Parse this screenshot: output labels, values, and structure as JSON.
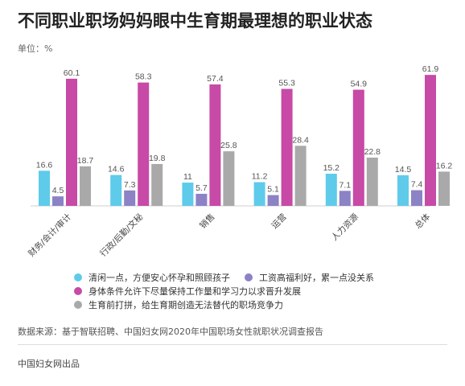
{
  "title": "不同职业职场妈妈眼中生育期最理想的职业状态",
  "unit": "单位：%",
  "source": "数据来源：基于智联招聘、中国妇女网2020年中国职场女性就职状况调查报告",
  "footer": "中国妇女网出品",
  "colors": {
    "cyan": "#5ECBEB",
    "purple": "#8C82C6",
    "magenta": "#C74AA6",
    "gray": "#A9A9A9"
  },
  "chart_data": {
    "type": "bar",
    "categories": [
      "财务/会计/审计",
      "行政/后勤/文秘",
      "销售",
      "运营",
      "人力资源",
      "总体"
    ],
    "ylim": [
      0,
      65
    ],
    "series": [
      {
        "name": "清闲一点，方便安心怀孕和照顾孩子",
        "color": "#5ECBEB",
        "values": [
          16.6,
          14.6,
          11,
          11.2,
          15.2,
          14.5
        ]
      },
      {
        "name": "工资高福利好，累一点没关系",
        "color": "#8C82C6",
        "values": [
          4.5,
          7.3,
          5.7,
          5.1,
          7.1,
          7.4
        ]
      },
      {
        "name": "身体条件允许下尽量保持工作量和学习力以求晋升发展",
        "color": "#C74AA6",
        "values": [
          60.1,
          58.3,
          57.4,
          55.3,
          54.9,
          61.9
        ]
      },
      {
        "name": "生育前打拼，给生育期创造无法替代的职场竞争力",
        "color": "#A9A9A9",
        "values": [
          18.7,
          19.8,
          25.8,
          28.4,
          22.8,
          16.2
        ]
      }
    ],
    "value_labels": [
      [
        "16.6",
        "14.6",
        "11",
        "11.2",
        "15.2",
        "14.5"
      ],
      [
        "4.5",
        "7.3",
        "5.7",
        "5.1",
        "7.1",
        "7.4"
      ],
      [
        "60.1",
        "58.3",
        "57.4",
        "55.3",
        "54.9",
        "61.9"
      ],
      [
        "18.7",
        "19.8",
        "25.8",
        "28.4",
        "22.8",
        "16.2"
      ]
    ],
    "legend_position": "bottom",
    "grid": false
  }
}
